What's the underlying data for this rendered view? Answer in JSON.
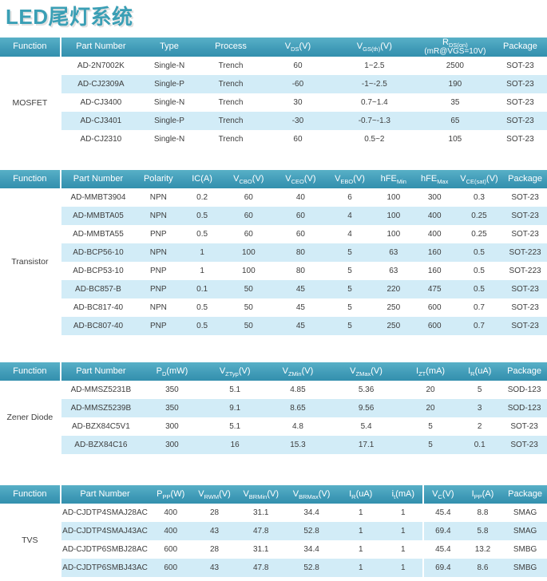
{
  "page": {
    "title": "LED尾灯系统"
  },
  "colors": {
    "header_gradient_top": "#58B0C7",
    "header_gradient_bottom": "#3390AE",
    "row_stripe": "#D2ECF7",
    "title_text": "#3A9FB5",
    "header_text": "#FFFFFF",
    "body_text": "#3D3D3D"
  },
  "tables": [
    {
      "function": "MOSFET",
      "dividers": [
        0
      ],
      "headers": [
        {
          "pre": "Function"
        },
        {
          "pre": "Part Number"
        },
        {
          "pre": "Type"
        },
        {
          "pre": "Process"
        },
        {
          "pre": "V",
          "sub": "DS",
          "post": "(V)"
        },
        {
          "pre": "V",
          "sub": "GS(th)",
          "post": "(V)"
        },
        {
          "pre": "R",
          "sub": "DS(on)",
          "post": "",
          "line2": "(mR@VGS=10V)"
        },
        {
          "pre": "Package"
        }
      ],
      "rows": [
        [
          "AD-2N7002K",
          "Single-N",
          "Trench",
          "60",
          "1~2.5",
          "2500",
          "SOT-23"
        ],
        [
          "AD-CJ2309A",
          "Single-P",
          "Trench",
          "-60",
          "-1~-2.5",
          "190",
          "SOT-23"
        ],
        [
          "AD-CJ3400",
          "Single-N",
          "Trench",
          "30",
          "0.7~1.4",
          "35",
          "SOT-23"
        ],
        [
          "AD-CJ3401",
          "Single-P",
          "Trench",
          "-30",
          "-0.7~-1.3",
          "65",
          "SOT-23"
        ],
        [
          "AD-CJ2310",
          "Single-N",
          "Trench",
          "60",
          "0.5~2",
          "105",
          "SOT-23"
        ]
      ]
    },
    {
      "function": "Transistor",
      "dividers": [
        0
      ],
      "headers": [
        {
          "pre": "Function"
        },
        {
          "pre": "Part Number"
        },
        {
          "pre": "Polarity"
        },
        {
          "pre": "IC(A)"
        },
        {
          "pre": "V",
          "sub": "CBO",
          "post": "(V)"
        },
        {
          "pre": "V",
          "sub": "CEO",
          "post": "(V)"
        },
        {
          "pre": "V",
          "sub": "EBO",
          "post": "(V)"
        },
        {
          "pre": "hFE",
          "sub": "Min"
        },
        {
          "pre": "hFE",
          "sub": "Max"
        },
        {
          "pre": "V",
          "sub": "CE(sat)",
          "post": "(V)"
        },
        {
          "pre": "Package"
        }
      ],
      "rows": [
        [
          "AD-MMBT3904",
          "NPN",
          "0.2",
          "60",
          "40",
          "6",
          "100",
          "300",
          "0.3",
          "SOT-23"
        ],
        [
          "AD-MMBTA05",
          "NPN",
          "0.5",
          "60",
          "60",
          "4",
          "100",
          "400",
          "0.25",
          "SOT-23"
        ],
        [
          "AD-MMBTA55",
          "PNP",
          "0.5",
          "60",
          "60",
          "4",
          "100",
          "400",
          "0.25",
          "SOT-23"
        ],
        [
          "AD-BCP56-10",
          "NPN",
          "1",
          "100",
          "80",
          "5",
          "63",
          "160",
          "0.5",
          "SOT-223"
        ],
        [
          "AD-BCP53-10",
          "PNP",
          "1",
          "100",
          "80",
          "5",
          "63",
          "160",
          "0.5",
          "SOT-223"
        ],
        [
          "AD-BC857-B",
          "PNP",
          "0.1",
          "50",
          "45",
          "5",
          "220",
          "475",
          "0.5",
          "SOT-23"
        ],
        [
          "AD-BC817-40",
          "NPN",
          "0.5",
          "50",
          "45",
          "5",
          "250",
          "600",
          "0.7",
          "SOT-23"
        ],
        [
          "AD-BC807-40",
          "PNP",
          "0.5",
          "50",
          "45",
          "5",
          "250",
          "600",
          "0.7",
          "SOT-23"
        ]
      ]
    },
    {
      "function": "Zener Diode",
      "dividers": [
        0
      ],
      "headers": [
        {
          "pre": "Function"
        },
        {
          "pre": "Part Number"
        },
        {
          "pre": "P",
          "sub": "D",
          "post": "(mW)"
        },
        {
          "pre": "V",
          "sub": "ZTyp",
          "post": "(V)"
        },
        {
          "pre": "V",
          "sub": "ZMin",
          "post": "(V)"
        },
        {
          "pre": "V",
          "sub": "ZMax",
          "post": "(V)"
        },
        {
          "pre": "I",
          "sub": "ZT",
          "post": "(mA)"
        },
        {
          "pre": "I",
          "sub": "R",
          "post": "(uA)"
        },
        {
          "pre": "Package"
        }
      ],
      "rows": [
        [
          "AD-MMSZ5231B",
          "350",
          "5.1",
          "4.85",
          "5.36",
          "20",
          "5",
          "SOD-123"
        ],
        [
          "AD-MMSZ5239B",
          "350",
          "9.1",
          "8.65",
          "9.56",
          "20",
          "3",
          "SOD-123"
        ],
        [
          "AD-BZX84C5V1",
          "300",
          "5.1",
          "4.8",
          "5.4",
          "5",
          "2",
          "SOT-23"
        ],
        [
          "AD-BZX84C16",
          "300",
          "16",
          "15.3",
          "17.1",
          "5",
          "0.1",
          "SOT-23"
        ]
      ]
    },
    {
      "function": "TVS",
      "dividers": [
        0,
        7
      ],
      "headers": [
        {
          "pre": "Function"
        },
        {
          "pre": "Part Number"
        },
        {
          "pre": "P",
          "sub": "PP",
          "post": "(W)"
        },
        {
          "pre": "V",
          "sub": "RWM",
          "post": "(V)"
        },
        {
          "pre": "V",
          "sub": "BRMin",
          "post": "(V)"
        },
        {
          "pre": "V",
          "sub": "BRMax",
          "post": "(V)"
        },
        {
          "pre": "I",
          "sub": "R",
          "post": "(uA)"
        },
        {
          "pre": "i",
          "sub": "t",
          "post": "(mA)"
        },
        {
          "pre": "V",
          "sub": "C",
          "post": "(V)"
        },
        {
          "pre": "I",
          "sub": "PP",
          "post": "(A)"
        },
        {
          "pre": "Package"
        }
      ],
      "rows": [
        [
          "AD-CJDTP4SMAJ28AC",
          "400",
          "28",
          "31.1",
          "34.4",
          "1",
          "1",
          "45.4",
          "8.8",
          "SMAG"
        ],
        [
          "AD-CJDTP4SMAJ43AC",
          "400",
          "43",
          "47.8",
          "52.8",
          "1",
          "1",
          "69.4",
          "5.8",
          "SMAG"
        ],
        [
          "AD-CJDTP6SMBJ28AC",
          "600",
          "28",
          "31.1",
          "34.4",
          "1",
          "1",
          "45.4",
          "13.2",
          "SMBG"
        ],
        [
          "AD-CJDTP6SMBJ43AC",
          "600",
          "43",
          "47.8",
          "52.8",
          "1",
          "1",
          "69.4",
          "8.6",
          "SMBG"
        ]
      ]
    }
  ]
}
